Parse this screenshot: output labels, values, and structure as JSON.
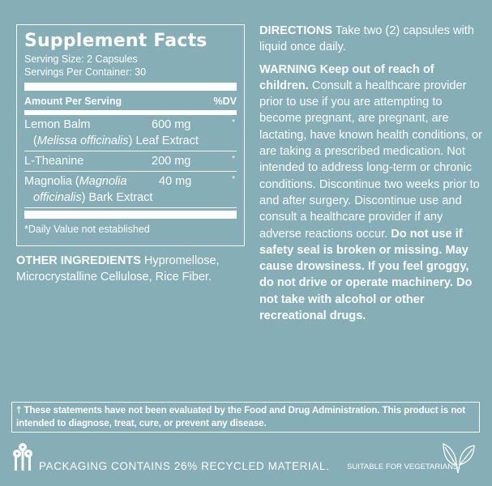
{
  "facts": {
    "title": "Supplement Facts",
    "serving_size": "Serving Size: 2 Capsules",
    "servings_per_container": "Servings Per Container: 30",
    "header_amount": "Amount Per Serving",
    "header_dv": "%DV",
    "rows": [
      {
        "name": "Lemon Balm",
        "amount": "600 mg",
        "dv": "*",
        "line2_open": "(",
        "line2_italic": "Melissa officinalis",
        "line2_rest": ") Leaf Extract"
      },
      {
        "name": "L-Theanine",
        "amount": "200 mg",
        "dv": "*"
      },
      {
        "name": "Magnolia (",
        "name_italic": "Magnolia",
        "amount": "40 mg",
        "dv": "*",
        "line2_italic": "officinalis",
        "line2_rest": ") Bark Extract"
      }
    ],
    "footnote": "*Daily Value not established"
  },
  "other": {
    "label": "OTHER INGREDIENTS",
    "text": " Hypromellose, Microcrystalline Cellulose, Rice Fiber."
  },
  "directions": {
    "label": "DIRECTIONS",
    "text": " Take two (2) capsules with liquid once daily."
  },
  "warning": {
    "label": "WARNING Keep out of reach of children.",
    "text": " Consult a healthcare provider prior to use if you are attempting to become pregnant, are pregnant, are lactating, have known health conditions, or are taking a prescribed medication. Not intended to address long-term or chronic conditions. Discontinue two weeks prior to and after surgery. Discontinue use and consult a healthcare provider if any adverse reactions occur.",
    "bold_end": " Do not use if safety seal is broken or missing. May cause drowsiness. If you feel groggy, do not drive or operate machinery. Do not take with alcohol or other recreational drugs."
  },
  "disclaimer": "† These statements have not been evaluated by the Food and Drug Administration. This product is not intended to diagnose, treat, cure, or prevent any disease.",
  "packaging": "PACKAGING CONTAINS 26% RECYCLED MATERIAL.",
  "vegetarian": "SUITABLE FOR VEGETARIANS.",
  "icons": {
    "recycle": "trees-icon",
    "vegetarian": "leaf-icon"
  },
  "colors": {
    "background": "#85aeb6",
    "text": "#ffffff"
  }
}
